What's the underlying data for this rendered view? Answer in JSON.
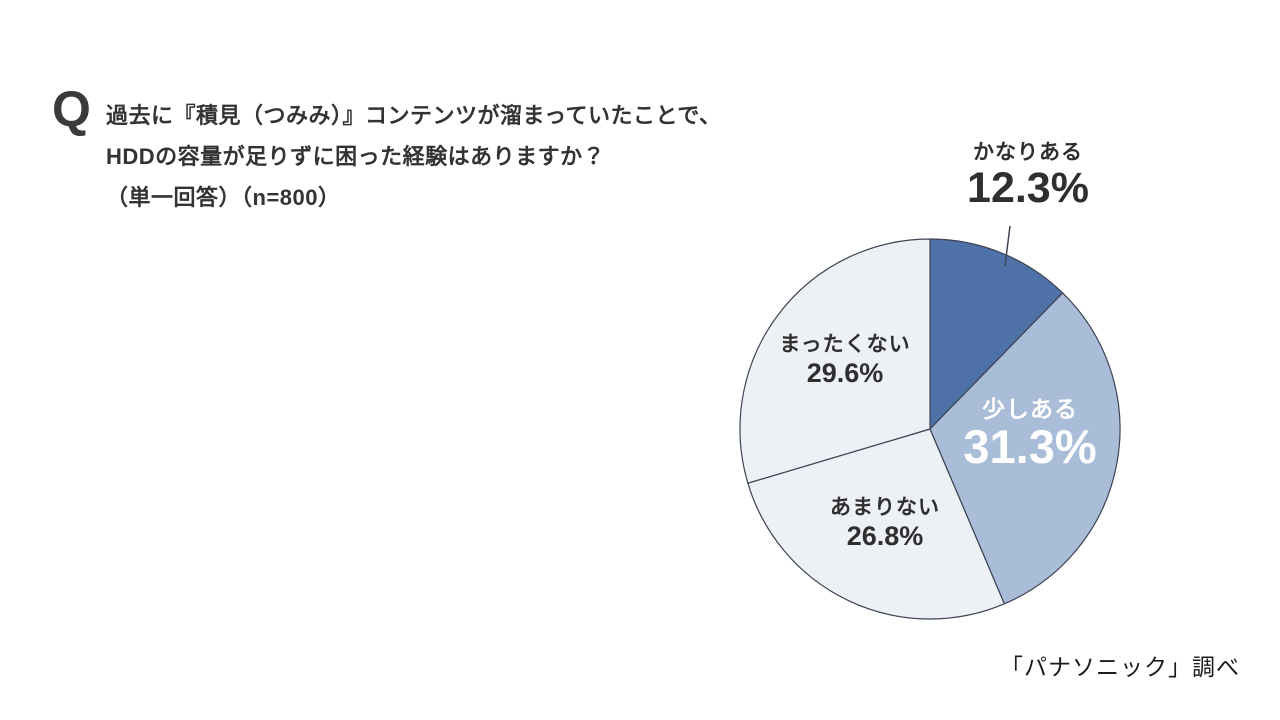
{
  "question": {
    "marker": "Q",
    "line1": "過去に『積見（つみみ）』コンテンツが溜まっていたことで、",
    "line2": "HDDの容量が足りずに困った経験はありますか？",
    "line3": "（単一回答）（n=800）"
  },
  "chart_data": {
    "type": "pie",
    "start_angle_deg": 0,
    "direction": "clockwise",
    "stroke_color": "#3d4453",
    "segments": [
      {
        "id": "kanari-aru",
        "label": "かなりある",
        "value": 12.3,
        "pct_label": "12.3%",
        "color": "#4e71a7",
        "label_placement": "outside-top",
        "label_color": "#2f2f2f"
      },
      {
        "id": "sukoshi-aru",
        "label": "少しある",
        "value": 31.3,
        "pct_label": "31.3%",
        "color": "#a9bdd9",
        "label_placement": "inside",
        "label_color": "#ffffff"
      },
      {
        "id": "amari-nai",
        "label": "あまりない",
        "value": 26.8,
        "pct_label": "26.8%",
        "color": "#edf0f5",
        "label_placement": "inside",
        "label_color": "#2f2f2f"
      },
      {
        "id": "mattaku-nai",
        "label": "まったくない",
        "value": 29.6,
        "pct_label": "29.6%",
        "color": "#edf0f5",
        "label_placement": "inside",
        "label_color": "#2f2f2f"
      }
    ]
  },
  "source": {
    "text": "「パナソニック」調べ"
  }
}
